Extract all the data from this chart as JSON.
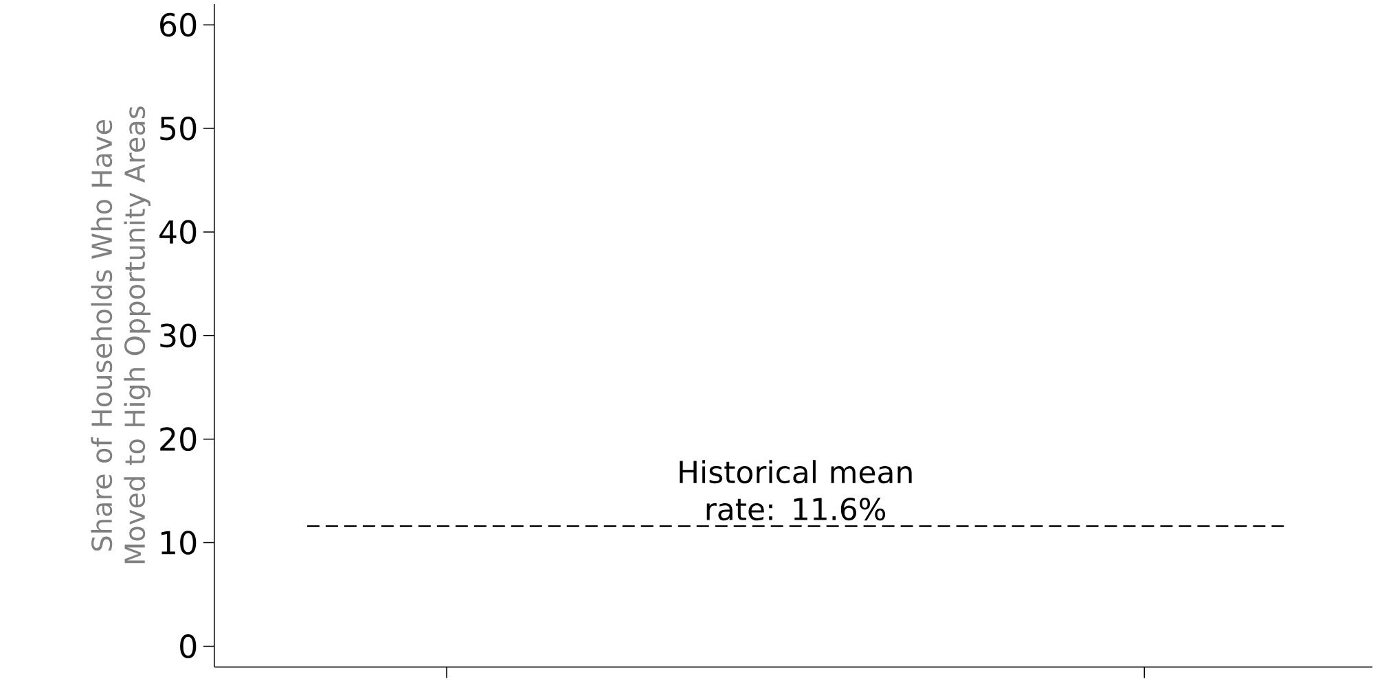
{
  "chart_data": {
    "type": "bar",
    "ylabel": "Share of Households Who Have Moved to High Opportunity Areas",
    "categories": [
      null,
      null
    ],
    "values": [
      null,
      null
    ],
    "ylim": [
      -2,
      62
    ],
    "yticks": [
      0,
      10,
      20,
      30,
      40,
      50,
      60
    ],
    "tick_labels": "y",
    "grid": false,
    "ref_lines": [
      {
        "axis": "y",
        "value": 11.6,
        "label": "Historical mean rate: 11.6%",
        "line_style": "dashed",
        "color": "#000000"
      }
    ]
  }
}
